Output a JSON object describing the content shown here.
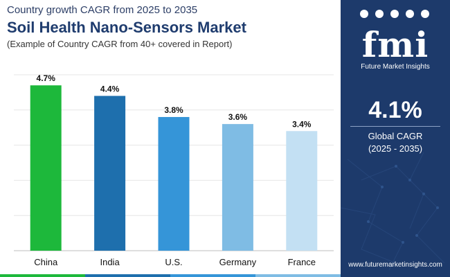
{
  "header": {
    "top_line": "Country growth CAGR from 2025 to 2035",
    "title": "Soil Health Nano-Sensors Market",
    "note": "(Example of Country CAGR from 40+ covered in Report)"
  },
  "chart_data": {
    "type": "bar",
    "categories": [
      "China",
      "India",
      "U.S.",
      "Germany",
      "France"
    ],
    "values": [
      4.7,
      4.4,
      3.8,
      3.6,
      3.4
    ],
    "value_labels": [
      "4.7%",
      "4.4%",
      "3.8%",
      "3.6%",
      "3.4%"
    ],
    "ylim": [
      0,
      5
    ],
    "grid": true,
    "colors": [
      "#1db83b",
      "#1e6fad",
      "#3595d8",
      "#7fbce4",
      "#c3e0f3"
    ]
  },
  "sidebar": {
    "logo_text": "fmi",
    "logo_subtitle": "Future Market Insights",
    "cagr_value": "4.1%",
    "cagr_label_line1": "Global CAGR",
    "cagr_label_line2": "(2025 - 2035)",
    "website": "www.futuremarketinsights.com",
    "background_color": "#1d3a6b"
  },
  "footer_colors": [
    "#1db83b",
    "#1e6fad",
    "#3595d8",
    "#7fbce4"
  ]
}
